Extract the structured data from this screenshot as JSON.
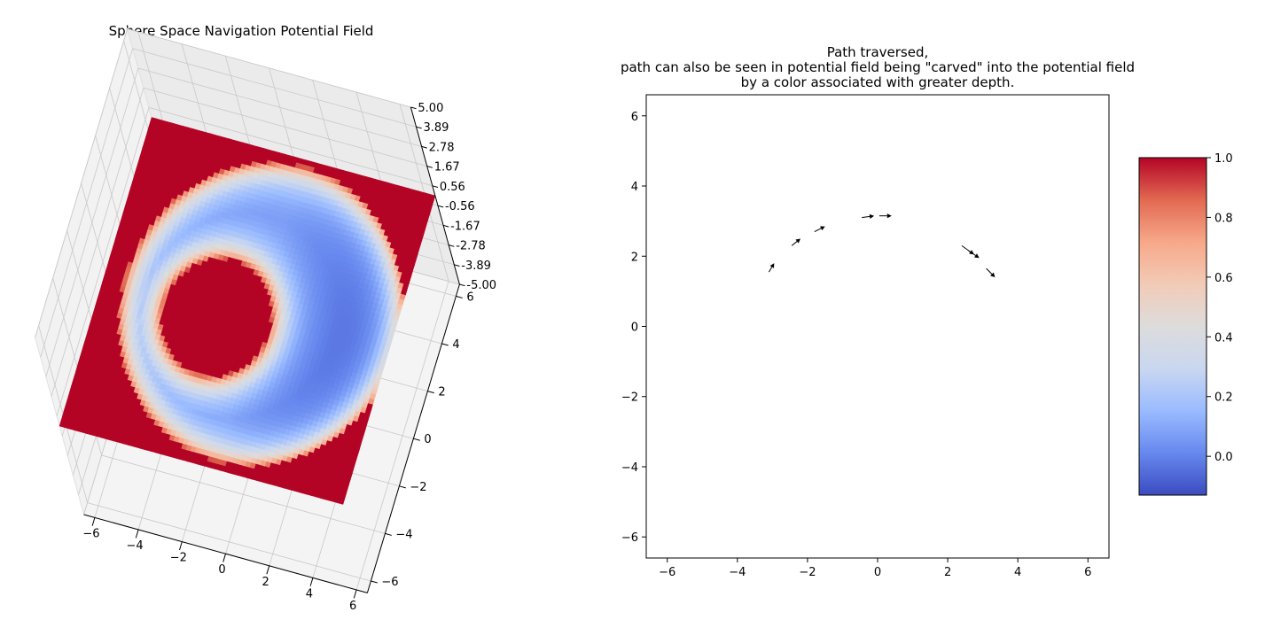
{
  "left_panel": {
    "title": "Sphere Space Navigation Potential Field",
    "x_ticks": [
      "−6",
      "−4",
      "−2",
      "0",
      "2",
      "4",
      "6"
    ],
    "y_ticks": [
      "6",
      "4",
      "2",
      "0",
      "−2",
      "−4",
      "−6"
    ],
    "z_ticks": [
      "5.00",
      "3.89",
      "2.78",
      "1.67",
      "0.56",
      "-0.56",
      "-1.67",
      "-2.78",
      "-3.89",
      "-5.00"
    ]
  },
  "right_panel": {
    "title_lines": [
      "Path traversed,",
      "path can also be seen in potential field being \"carved\" into the potential field",
      "by a color associated with greater depth."
    ]
  },
  "colorbar": {
    "colormap": "coolwarm",
    "range": [
      -0.13,
      1.0
    ],
    "ticks": [
      {
        "value": 1.0,
        "label": "1.0"
      },
      {
        "value": 0.8,
        "label": "0.8"
      },
      {
        "value": 0.6,
        "label": "0.6"
      },
      {
        "value": 0.4,
        "label": "0.4"
      },
      {
        "value": 0.2,
        "label": "0.2"
      },
      {
        "value": 0.0,
        "label": "0.0"
      }
    ],
    "colors": [
      "#3b4cc0",
      "#6788ee",
      "#9abbff",
      "#c9d7f0",
      "#dddcdc",
      "#f2cbb7",
      "#f7a889",
      "#e26952",
      "#b40426"
    ]
  },
  "chart_data": [
    {
      "type": "heatmap",
      "title": "Sphere Space Navigation Potential Field",
      "projection": "3d surface, viewed from above",
      "xlim": [
        -6.5,
        6.5
      ],
      "ylim": [
        -6.5,
        6.5
      ],
      "zlim": [
        -5.0,
        5.0
      ],
      "field": {
        "outside_value": 1.0,
        "obstacle": {
          "center": [
            -1.2,
            -0.6
          ],
          "radius": 2.4,
          "value": 1.0
        },
        "workspace": {
          "center": [
            0.6,
            0.0
          ],
          "radius": 6.2
        },
        "ring_min_value": 0.05
      }
    },
    {
      "type": "quiver",
      "title": "Path traversed,\npath can also be seen in potential field being \"carved\" into the potential field\nby a color associated with greater depth.",
      "xlim": [
        -6.6,
        6.6
      ],
      "ylim": [
        -6.6,
        6.6
      ],
      "x_ticks": [
        -6,
        -4,
        -2,
        0,
        2,
        4,
        6
      ],
      "y_ticks": [
        -6,
        -4,
        -2,
        0,
        2,
        4,
        6
      ],
      "arrows": [
        {
          "x": -3.1,
          "y": 1.55,
          "u": 0.15,
          "v": 0.25
        },
        {
          "x": -2.45,
          "y": 2.3,
          "u": 0.25,
          "v": 0.2
        },
        {
          "x": -1.8,
          "y": 2.7,
          "u": 0.3,
          "v": 0.15
        },
        {
          "x": -0.45,
          "y": 3.1,
          "u": 0.35,
          "v": 0.05
        },
        {
          "x": 0.05,
          "y": 3.15,
          "u": 0.35,
          "v": 0.0
        },
        {
          "x": 2.4,
          "y": 2.3,
          "u": 0.35,
          "v": -0.25
        },
        {
          "x": 2.6,
          "y": 2.15,
          "u": 0.3,
          "v": -0.2
        },
        {
          "x": 3.1,
          "y": 1.65,
          "u": 0.25,
          "v": -0.25
        }
      ]
    }
  ]
}
